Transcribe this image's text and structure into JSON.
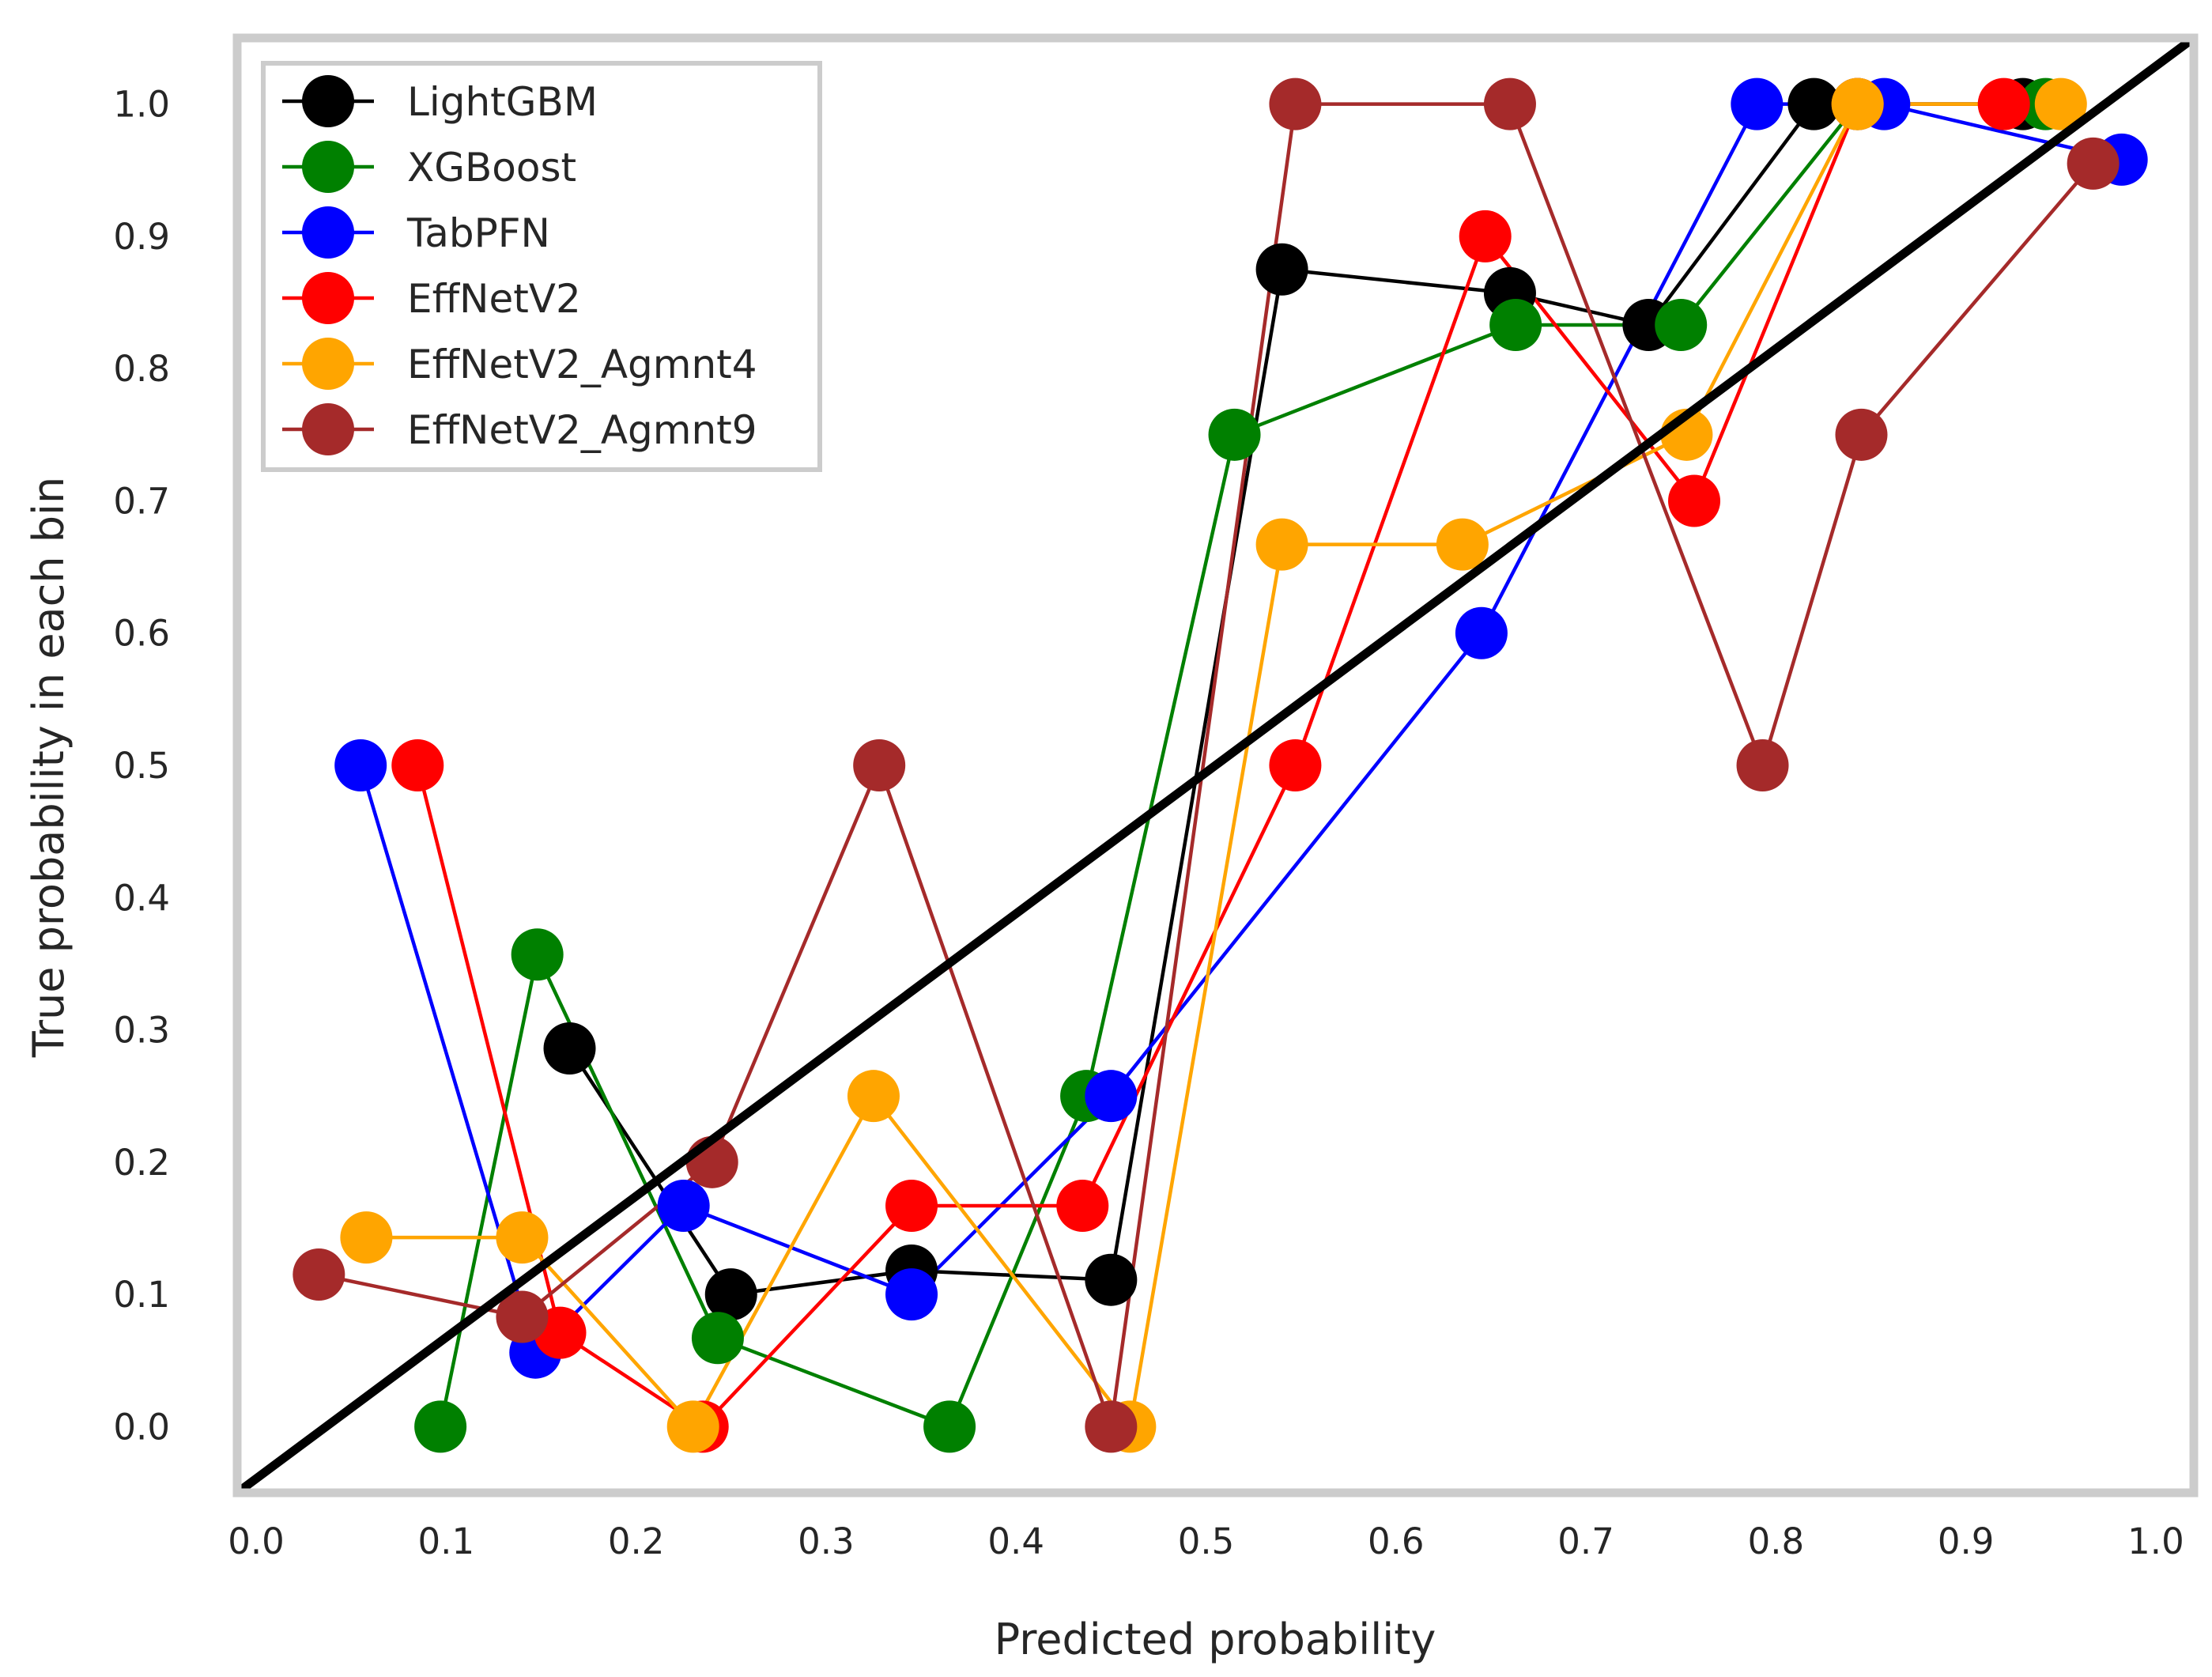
{
  "chart_data": {
    "type": "line",
    "title": "",
    "xlabel": "Predicted probability",
    "ylabel": "True probability in each bin",
    "xlim": [
      -0.01,
      1.02
    ],
    "ylim": [
      -0.05,
      1.05
    ],
    "xticks": [
      "0.0",
      "0.1",
      "0.2",
      "0.3",
      "0.4",
      "0.5",
      "0.6",
      "0.7",
      "0.8",
      "0.9",
      "1.0"
    ],
    "yticks": [
      "0.0",
      "0.1",
      "0.2",
      "0.3",
      "0.4",
      "0.5",
      "0.6",
      "0.7",
      "0.8",
      "0.9",
      "1.0"
    ],
    "grid": false,
    "legend_position": "top-left",
    "reference_line": {
      "x": [
        -0.01,
        1.02
      ],
      "y": [
        -0.05,
        1.05
      ],
      "color": "#000000"
    },
    "series": [
      {
        "name": "LightGBM",
        "color": "#000000",
        "x": [
          0.165,
          0.25,
          0.345,
          0.45,
          0.54,
          0.66,
          0.733,
          0.82,
          0.93
        ],
        "y": [
          0.286,
          0.1,
          0.118,
          0.111,
          0.875,
          0.857,
          0.833,
          1.0,
          1.0
        ]
      },
      {
        "name": "XGBoost",
        "color": "#008000",
        "x": [
          0.097,
          0.148,
          0.243,
          0.365,
          0.437,
          0.515,
          0.663,
          0.75,
          0.843,
          0.942
        ],
        "y": [
          0.0,
          0.357,
          0.067,
          0.0,
          0.25,
          0.75,
          0.833,
          0.833,
          1.0,
          1.0
        ]
      },
      {
        "name": "TabPFN",
        "color": "#0000ff",
        "x": [
          0.055,
          0.147,
          0.225,
          0.345,
          0.45,
          0.645,
          0.79,
          0.857,
          0.982
        ],
        "y": [
          0.5,
          0.056,
          0.167,
          0.1,
          0.25,
          0.6,
          1.0,
          1.0,
          0.958
        ]
      },
      {
        "name": "EffNetV2",
        "color": "#ff0000",
        "x": [
          0.085,
          0.16,
          0.235,
          0.345,
          0.435,
          0.547,
          0.647,
          0.757,
          0.843,
          0.92
        ],
        "y": [
          0.5,
          0.071,
          0.0,
          0.167,
          0.167,
          0.5,
          0.9,
          0.7,
          1.0,
          1.0
        ]
      },
      {
        "name": "EffNetV2_Agmnt4",
        "color": "#ffa500",
        "x": [
          0.058,
          0.14,
          0.23,
          0.325,
          0.46,
          0.54,
          0.635,
          0.753,
          0.843,
          0.95
        ],
        "y": [
          0.143,
          0.143,
          0.0,
          0.25,
          0.0,
          0.667,
          0.667,
          0.75,
          1.0,
          1.0
        ]
      },
      {
        "name": "EffNetV2_Agmnt9",
        "color": "#a52a2a",
        "x": [
          0.033,
          0.14,
          0.24,
          0.328,
          0.45,
          0.547,
          0.66,
          0.793,
          0.845,
          0.967
        ],
        "y": [
          0.115,
          0.083,
          0.2,
          0.5,
          0.0,
          1.0,
          1.0,
          0.5,
          0.75,
          0.955
        ]
      }
    ]
  }
}
